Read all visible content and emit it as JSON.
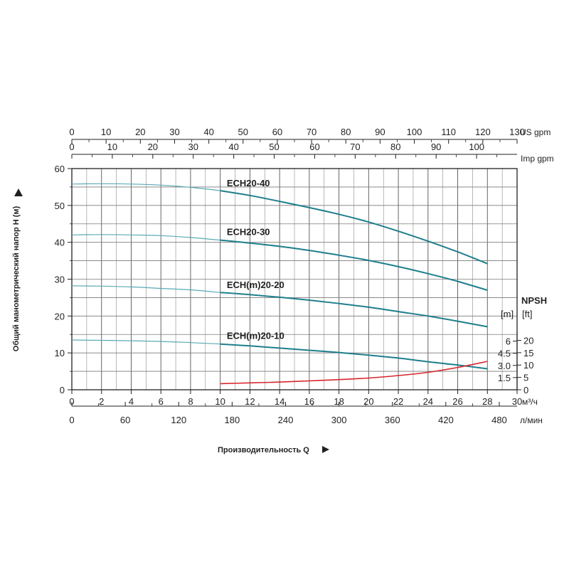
{
  "chart_data": {
    "type": "line",
    "title": "",
    "xlabel": "Производительность Q",
    "ylabel": "Общий манометрический напор H (м)",
    "x_unit": "м³/ч",
    "x_range": [
      0,
      30
    ],
    "y_range": [
      0,
      60
    ],
    "x_ticks": [
      0,
      2,
      4,
      6,
      8,
      10,
      12,
      14,
      16,
      18,
      20,
      22,
      24,
      26,
      28,
      30
    ],
    "y_ticks": [
      0,
      10,
      20,
      30,
      40,
      50,
      60
    ],
    "grid": true,
    "secondary_x_axes": [
      {
        "unit": "US gpm",
        "position": "top",
        "range": [
          0,
          130
        ],
        "ticks": [
          0,
          10,
          20,
          30,
          40,
          50,
          60,
          70,
          80,
          90,
          100,
          110,
          120,
          130
        ]
      },
      {
        "unit": "Imp gpm",
        "position": "top",
        "range": [
          0,
          110
        ],
        "ticks": [
          0,
          10,
          20,
          30,
          40,
          50,
          60,
          70,
          80,
          90,
          100
        ]
      },
      {
        "unit": "л/мин",
        "position": "bottom",
        "range": [
          0,
          500
        ],
        "ticks": [
          0,
          60,
          120,
          180,
          240,
          300,
          360,
          420,
          480
        ]
      }
    ],
    "npsh_axis": {
      "title": "NPSH",
      "m_label": "[m]",
      "ft_label": "[ft]",
      "m_range": [
        0,
        7.5
      ],
      "m_ticks": [
        "1.5",
        "3.0",
        "4.5",
        "6"
      ],
      "ft_ticks": [
        0,
        5,
        10,
        15,
        20
      ]
    },
    "series": [
      {
        "name": "ECH20-40",
        "color": "#1e7f8c",
        "x": [
          0,
          2,
          4,
          6,
          8,
          10,
          12,
          14,
          16,
          18,
          20,
          22,
          24,
          26,
          28
        ],
        "y": [
          55.8,
          55.9,
          55.8,
          55.5,
          54.9,
          54.0,
          52.7,
          51.1,
          49.4,
          47.6,
          45.5,
          43.0,
          40.3,
          37.4,
          34.2
        ]
      },
      {
        "name": "ECH20-30",
        "color": "#1e7f8c",
        "x": [
          0,
          2,
          4,
          6,
          8,
          10,
          12,
          14,
          16,
          18,
          20,
          22,
          24,
          26,
          28
        ],
        "y": [
          42.0,
          42.1,
          42.0,
          41.8,
          41.3,
          40.6,
          39.8,
          38.9,
          37.8,
          36.5,
          35.1,
          33.4,
          31.5,
          29.4,
          27.0
        ]
      },
      {
        "name": "ECH(m)20-20",
        "color": "#1e7f8c",
        "x": [
          0,
          2,
          4,
          6,
          8,
          10,
          12,
          14,
          16,
          18,
          20,
          22,
          24,
          26,
          28
        ],
        "y": [
          28.2,
          28.1,
          27.9,
          27.5,
          27.1,
          26.4,
          25.8,
          25.1,
          24.3,
          23.4,
          22.4,
          21.2,
          20.0,
          18.6,
          17.1
        ]
      },
      {
        "name": "ECH(m)20-10",
        "color": "#1e7f8c",
        "x": [
          0,
          2,
          4,
          6,
          8,
          10,
          12,
          14,
          16,
          18,
          20,
          22,
          24,
          26,
          28
        ],
        "y": [
          13.5,
          13.4,
          13.3,
          13.1,
          12.8,
          12.4,
          11.9,
          11.3,
          10.7,
          10.1,
          9.4,
          8.6,
          7.6,
          6.7,
          5.7
        ]
      }
    ],
    "npsh_series": {
      "color": "#d7262d",
      "x": [
        10,
        12,
        14,
        16,
        18,
        20,
        22,
        24,
        26,
        28
      ],
      "npsh_m": [
        0.75,
        0.85,
        0.95,
        1.1,
        1.25,
        1.45,
        1.75,
        2.15,
        2.75,
        3.5
      ]
    }
  }
}
